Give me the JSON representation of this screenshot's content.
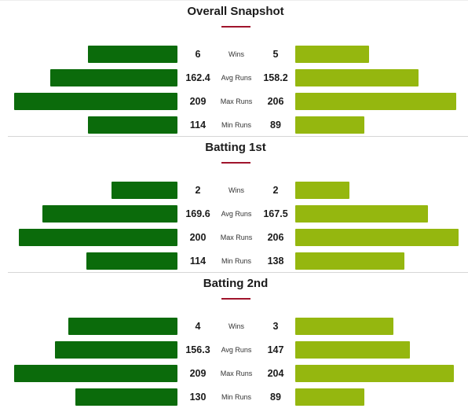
{
  "colors": {
    "team_left": "#0b6b0b",
    "team_right": "#95b70f",
    "title_accent": "#a0142c"
  },
  "chart_data": [
    {
      "type": "bar",
      "title": "Overall Snapshot",
      "categories": [
        "Wins",
        "Avg Runs",
        "Max Runs",
        "Min Runs"
      ],
      "series": [
        {
          "values": [
            "6",
            "162.4",
            "209",
            "114"
          ]
        },
        {
          "values": [
            "5",
            "158.2",
            "206",
            "89"
          ]
        }
      ]
    },
    {
      "type": "bar",
      "title": "Batting 1st",
      "categories": [
        "Wins",
        "Avg Runs",
        "Max Runs",
        "Min Runs"
      ],
      "series": [
        {
          "values": [
            "2",
            "169.6",
            "200",
            "114"
          ]
        },
        {
          "values": [
            "2",
            "167.5",
            "206",
            "138"
          ]
        }
      ]
    },
    {
      "type": "bar",
      "title": "Batting 2nd",
      "categories": [
        "Wins",
        "Avg Runs",
        "Max Runs",
        "Min Runs"
      ],
      "series": [
        {
          "values": [
            "4",
            "156.3",
            "209",
            "130"
          ]
        },
        {
          "values": [
            "3",
            "147",
            "204",
            "89"
          ]
        }
      ]
    }
  ]
}
